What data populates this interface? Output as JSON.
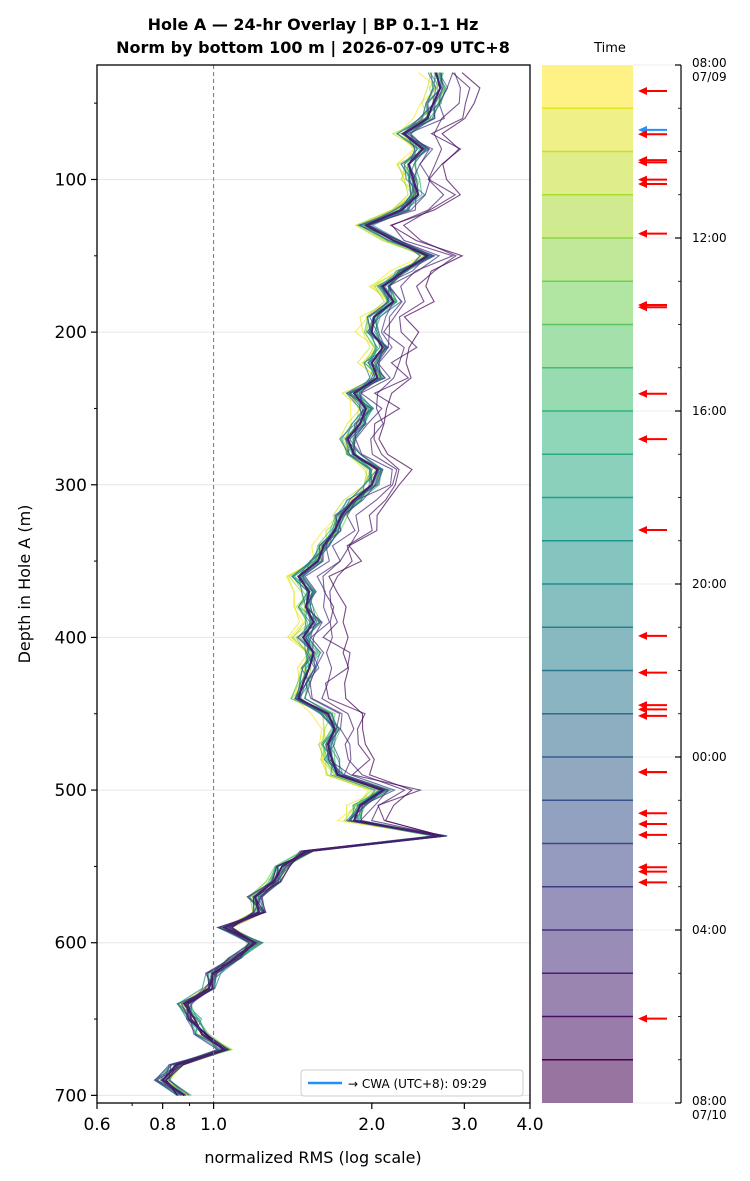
{
  "chart_data": {
    "type": "line",
    "title": "Hole A — 24-hr Overlay  |  BP 0.1–1 Hz",
    "subtitle": "Norm by bottom 100 m  |  2026-07-09 UTC+8",
    "xlabel": "normalized RMS  (log scale)",
    "ylabel": "Depth in Hole A (m)",
    "xscale": "log",
    "xlim": [
      0.6,
      4.0
    ],
    "ylim": [
      705,
      25
    ],
    "x_ticks": [
      {
        "value": 0.6,
        "label": "0.6"
      },
      {
        "value": 0.8,
        "label": "0.8"
      },
      {
        "value": 1.0,
        "label": "1.0"
      },
      {
        "value": 2.0,
        "label": "2.0"
      },
      {
        "value": 3.0,
        "label": "3.0"
      },
      {
        "value": 4.0,
        "label": "4.0"
      }
    ],
    "y_ticks": [
      {
        "value": 100,
        "label": "100"
      },
      {
        "value": 200,
        "label": "200"
      },
      {
        "value": 300,
        "label": "300"
      },
      {
        "value": 400,
        "label": "400"
      },
      {
        "value": 500,
        "label": "500"
      },
      {
        "value": 600,
        "label": "600"
      },
      {
        "value": 700,
        "label": "700"
      }
    ],
    "reference_line_x": 1.0,
    "grid": "horizontal",
    "legend": {
      "placement": "bottom-right",
      "label": "→ CWA (UTC+8): 09:29",
      "color": "#1e90ff"
    },
    "profile_depths": [
      30,
      40,
      50,
      60,
      70,
      80,
      90,
      100,
      110,
      120,
      130,
      140,
      150,
      160,
      170,
      180,
      190,
      200,
      210,
      220,
      230,
      240,
      250,
      260,
      270,
      280,
      290,
      300,
      310,
      320,
      330,
      340,
      350,
      360,
      370,
      380,
      390,
      400,
      410,
      420,
      430,
      440,
      450,
      460,
      470,
      480,
      490,
      500,
      510,
      520,
      530,
      540,
      550,
      560,
      570,
      580,
      590,
      600,
      610,
      620,
      630,
      640,
      650,
      660,
      670,
      680,
      690,
      700
    ],
    "mean_profile": [
      2.65,
      2.7,
      2.62,
      2.55,
      2.3,
      2.5,
      2.35,
      2.4,
      2.45,
      2.28,
      1.95,
      2.2,
      2.55,
      2.3,
      2.1,
      2.2,
      2.02,
      2.0,
      2.1,
      2.0,
      2.05,
      1.85,
      1.95,
      1.9,
      1.8,
      1.85,
      2.05,
      2.0,
      1.85,
      1.75,
      1.7,
      1.62,
      1.58,
      1.45,
      1.52,
      1.5,
      1.55,
      1.48,
      1.55,
      1.52,
      1.48,
      1.45,
      1.65,
      1.7,
      1.65,
      1.68,
      1.72,
      2.1,
      1.9,
      1.85,
      2.7,
      1.5,
      1.35,
      1.3,
      1.2,
      1.22,
      1.05,
      1.2,
      1.1,
      1.0,
      0.98,
      0.88,
      0.92,
      0.95,
      1.05,
      0.85,
      0.8,
      0.88
    ],
    "series_count": 24,
    "series_colormap": [
      "#fde725",
      "#b5de2b",
      "#6ece58",
      "#35b779",
      "#1f9e89",
      "#26828e",
      "#31688e",
      "#3e4989",
      "#482878",
      "#440154"
    ],
    "colorbar": {
      "label": "Time",
      "ticks": [
        "08:00\n07/09",
        "12:00",
        "16:00",
        "20:00",
        "00:00",
        "04:00",
        "08:00\n07/10"
      ],
      "tick_hours": [
        0,
        4,
        8,
        12,
        16,
        20,
        24
      ],
      "bands": 24
    },
    "event_arrows": [
      {
        "hour": 0.6,
        "color": "#ff0000"
      },
      {
        "hour": 1.5,
        "color": "#1e90ff"
      },
      {
        "hour": 1.6,
        "color": "#ff0000"
      },
      {
        "hour": 2.2,
        "color": "#ff0000"
      },
      {
        "hour": 2.25,
        "color": "#ff0000"
      },
      {
        "hour": 2.65,
        "color": "#ff0000"
      },
      {
        "hour": 2.75,
        "color": "#ff0000"
      },
      {
        "hour": 3.9,
        "color": "#ff0000"
      },
      {
        "hour": 5.55,
        "color": "#ff0000"
      },
      {
        "hour": 5.6,
        "color": "#ff0000"
      },
      {
        "hour": 7.6,
        "color": "#ff0000"
      },
      {
        "hour": 8.65,
        "color": "#ff0000"
      },
      {
        "hour": 10.75,
        "color": "#ff0000"
      },
      {
        "hour": 13.2,
        "color": "#ff0000"
      },
      {
        "hour": 14.05,
        "color": "#ff0000"
      },
      {
        "hour": 14.8,
        "color": "#ff0000"
      },
      {
        "hour": 14.9,
        "color": "#ff0000"
      },
      {
        "hour": 15.05,
        "color": "#ff0000"
      },
      {
        "hour": 16.35,
        "color": "#ff0000"
      },
      {
        "hour": 16.35,
        "color": "#ff0000"
      },
      {
        "hour": 17.3,
        "color": "#ff0000"
      },
      {
        "hour": 17.55,
        "color": "#ff0000"
      },
      {
        "hour": 17.8,
        "color": "#ff0000"
      },
      {
        "hour": 18.55,
        "color": "#ff0000"
      },
      {
        "hour": 18.65,
        "color": "#ff0000"
      },
      {
        "hour": 18.9,
        "color": "#ff0000"
      },
      {
        "hour": 22.05,
        "color": "#ff0000"
      }
    ]
  }
}
